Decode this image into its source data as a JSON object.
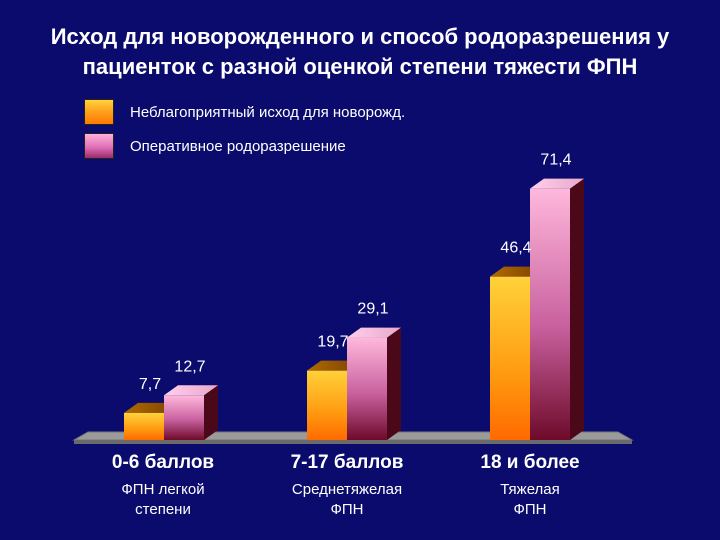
{
  "title_line1": "Исход для новорожденного и способ родоразрешения у",
  "title_line2": "пациенток с разной оценкой степени тяжести ФПН",
  "chart_data": {
    "type": "bar",
    "categories": [
      "0-6 баллов",
      "7-17 баллов",
      "18 и более"
    ],
    "category_sublabels": [
      [
        "ФПН легкой",
        "степени"
      ],
      [
        "Среднетяжелая",
        "ФПН"
      ],
      [
        "Тяжелая",
        "ФПН"
      ]
    ],
    "series": [
      {
        "name": "Неблагоприятный исход для новорожд.",
        "values": [
          7.7,
          19.7,
          46.4
        ],
        "labels": [
          "7,7",
          "19,7",
          "46,4"
        ],
        "color": "#ffa500"
      },
      {
        "name": "Оперативное родоразрешение",
        "values": [
          12.7,
          29.1,
          71.4
        ],
        "labels": [
          "12,7",
          "29,1",
          "71,4"
        ],
        "color": "#e88ac8"
      }
    ],
    "ylim": [
      0,
      80
    ],
    "legend": "top-left",
    "grid": false
  }
}
